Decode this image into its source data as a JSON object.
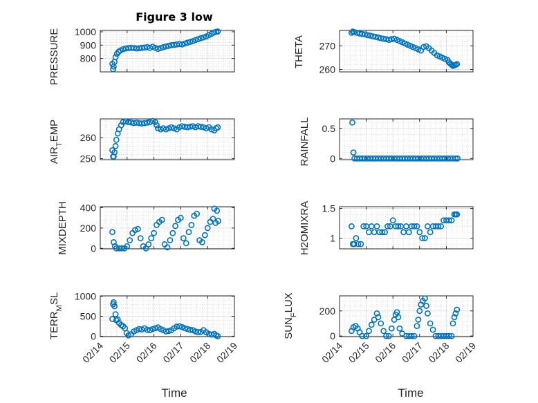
{
  "figure_title": "Figure 3 low",
  "colors": {
    "marker": "#0072BD",
    "axis": "#262626",
    "grid": "#c8c8c8"
  },
  "chart_data": [
    {
      "type": "scatter",
      "ylabel": "PRESSURE",
      "ylim": [
        700,
        1010
      ],
      "yticks": [
        800,
        900,
        1000
      ],
      "xlim": [
        0,
        5
      ],
      "x": [
        0.45,
        0.48,
        0.5,
        0.53,
        0.57,
        0.62,
        0.68,
        0.75,
        0.85,
        0.95,
        1.05,
        1.15,
        1.25,
        1.35,
        1.45,
        1.55,
        1.65,
        1.75,
        1.85,
        1.95,
        2.05,
        2.15,
        2.25,
        2.35,
        2.45,
        2.55,
        2.65,
        2.75,
        2.85,
        2.95,
        3.05,
        3.15,
        3.25,
        3.35,
        3.45,
        3.55,
        3.65,
        3.75,
        3.85,
        3.95,
        4.05,
        4.15,
        4.25,
        4.32,
        4.38
      ],
      "y": [
        760,
        720,
        740,
        775,
        810,
        835,
        850,
        860,
        870,
        875,
        878,
        880,
        878,
        875,
        876,
        880,
        882,
        885,
        880,
        888,
        880,
        872,
        878,
        885,
        890,
        895,
        900,
        902,
        905,
        908,
        905,
        912,
        918,
        925,
        930,
        938,
        945,
        952,
        958,
        965,
        975,
        985,
        995,
        1000,
        1002
      ]
    },
    {
      "type": "scatter",
      "ylabel": "THETA",
      "ylim": [
        259,
        276.5
      ],
      "yticks": [
        260,
        270
      ],
      "xlim": [
        0,
        5
      ],
      "x": [
        0.45,
        0.5,
        0.55,
        0.65,
        0.75,
        0.85,
        0.95,
        1.05,
        1.15,
        1.25,
        1.35,
        1.45,
        1.55,
        1.65,
        1.75,
        1.85,
        1.95,
        2.05,
        2.15,
        2.25,
        2.35,
        2.45,
        2.55,
        2.65,
        2.75,
        2.85,
        2.95,
        3.05,
        3.15,
        3.25,
        3.35,
        3.45,
        3.55,
        3.65,
        3.75,
        3.85,
        3.95,
        4.05,
        4.1,
        4.15,
        4.2,
        4.25,
        4.3,
        4.35,
        4.4
      ],
      "y": [
        275.5,
        276,
        275.8,
        275.5,
        275.2,
        275,
        274.8,
        274.5,
        274.3,
        274,
        273.8,
        273.5,
        273.2,
        273,
        272.8,
        272.5,
        272.8,
        273,
        272.5,
        272,
        271.5,
        271,
        270.5,
        270,
        269.5,
        269,
        268.5,
        268,
        269.5,
        269.8,
        269,
        268,
        267,
        266,
        265.5,
        265,
        264.5,
        264,
        263,
        262.5,
        262,
        261.5,
        261.8,
        262,
        262.3
      ]
    },
    {
      "type": "scatter",
      "ylabel": "AIR_TEMP",
      "ylim": [
        249.5,
        269
      ],
      "yticks": [
        250,
        260
      ],
      "xlim": [
        0,
        5
      ],
      "x": [
        0.45,
        0.48,
        0.5,
        0.53,
        0.57,
        0.6,
        0.65,
        0.7,
        0.78,
        0.85,
        0.95,
        1.05,
        1.15,
        1.25,
        1.35,
        1.45,
        1.55,
        1.65,
        1.75,
        1.85,
        1.95,
        2.05,
        2.1,
        2.15,
        2.25,
        2.35,
        2.45,
        2.55,
        2.65,
        2.75,
        2.85,
        2.95,
        3.05,
        3.15,
        3.25,
        3.35,
        3.45,
        3.55,
        3.65,
        3.75,
        3.85,
        3.95,
        4.05,
        4.15,
        4.25,
        4.32,
        4.38
      ],
      "y": [
        254,
        251,
        251,
        253,
        256,
        259,
        262,
        264,
        266,
        267.5,
        267.8,
        267.5,
        267.3,
        267,
        267.2,
        267,
        266.8,
        267,
        267.2,
        267.5,
        268,
        267.5,
        266,
        264.5,
        264,
        264.5,
        264,
        264.5,
        265,
        264.5,
        264,
        265,
        265.5,
        265.2,
        265,
        265.3,
        265.5,
        265,
        265.5,
        265.2,
        265,
        264.5,
        265,
        264,
        263.5,
        264.5,
        265
      ]
    },
    {
      "type": "scatter",
      "ylabel": "RAINFALL",
      "ylim": [
        -0.02,
        0.66
      ],
      "yticks": [
        0,
        0.5
      ],
      "xlim": [
        0,
        5
      ],
      "x": [
        0.48,
        0.52,
        0.56,
        0.65,
        0.75,
        0.85,
        0.95,
        1.05,
        1.15,
        1.25,
        1.35,
        1.45,
        1.55,
        1.65,
        1.75,
        1.85,
        1.95,
        2.05,
        2.15,
        2.25,
        2.35,
        2.45,
        2.55,
        2.65,
        2.75,
        2.85,
        2.95,
        3.05,
        3.15,
        3.25,
        3.35,
        3.45,
        3.55,
        3.65,
        3.75,
        3.85,
        3.95,
        4.05,
        4.15,
        4.25,
        4.35,
        4.42
      ],
      "y": [
        0.6,
        0.1,
        0,
        0,
        0,
        0,
        0,
        0,
        0,
        0,
        0,
        0,
        0,
        0,
        0,
        0,
        0,
        0,
        0,
        0,
        0,
        0,
        0,
        0,
        0,
        0,
        0,
        0,
        0,
        0,
        0,
        0,
        0,
        0,
        0,
        0,
        0,
        0,
        0,
        0,
        0,
        0
      ]
    },
    {
      "type": "scatter",
      "ylabel": "MIXDEPTH",
      "ylim": [
        -5,
        410
      ],
      "yticks": [
        0,
        200,
        400
      ],
      "xlim": [
        0,
        5
      ],
      "x": [
        0.45,
        0.5,
        0.55,
        0.6,
        0.7,
        0.8,
        0.9,
        1.0,
        1.1,
        1.2,
        1.3,
        1.4,
        1.5,
        1.6,
        1.7,
        1.8,
        1.9,
        2.0,
        2.1,
        2.2,
        2.3,
        2.4,
        2.5,
        2.6,
        2.7,
        2.8,
        2.9,
        3.0,
        3.1,
        3.2,
        3.3,
        3.4,
        3.5,
        3.6,
        3.7,
        3.8,
        3.9,
        4.0,
        4.1,
        4.2,
        4.25,
        4.3,
        4.35,
        4.4
      ],
      "y": [
        160,
        60,
        20,
        0,
        0,
        0,
        0,
        20,
        80,
        150,
        180,
        190,
        100,
        20,
        0,
        40,
        100,
        150,
        230,
        260,
        280,
        40,
        10,
        80,
        150,
        220,
        280,
        300,
        100,
        50,
        160,
        230,
        320,
        340,
        80,
        60,
        130,
        200,
        260,
        290,
        390,
        250,
        370,
        270
      ]
    },
    {
      "type": "scatter",
      "ylabel": "H2OMIXRA",
      "ylim": [
        0.82,
        1.53
      ],
      "yticks": [
        1,
        1.5
      ],
      "xlim": [
        0,
        5
      ],
      "x": [
        0.45,
        0.5,
        0.55,
        0.62,
        0.7,
        0.8,
        0.9,
        1.0,
        1.1,
        1.2,
        1.3,
        1.4,
        1.5,
        1.6,
        1.7,
        1.8,
        1.9,
        2.0,
        2.1,
        2.2,
        2.3,
        2.4,
        2.5,
        2.6,
        2.7,
        2.8,
        2.9,
        3.0,
        3.1,
        3.2,
        3.3,
        3.4,
        3.5,
        3.6,
        3.7,
        3.8,
        3.9,
        4.0,
        4.1,
        4.2,
        4.3,
        4.35,
        4.4
      ],
      "y": [
        1.2,
        0.9,
        0.9,
        1.0,
        0.9,
        0.9,
        1.2,
        1.2,
        1.1,
        1.2,
        1.1,
        1.2,
        1.1,
        1.1,
        1.1,
        1.2,
        1.2,
        1.3,
        1.2,
        1.2,
        1.2,
        1.1,
        1.2,
        1.1,
        1.2,
        1.2,
        1.2,
        1.1,
        1.0,
        1.0,
        1.2,
        1.1,
        1.2,
        1.2,
        1.2,
        1.2,
        1.3,
        1.3,
        1.3,
        1.3,
        1.4,
        1.4,
        1.4
      ]
    },
    {
      "type": "scatter",
      "ylabel": "TERR_MSL",
      "ylim": [
        -10,
        1010
      ],
      "yticks": [
        0,
        500,
        1000
      ],
      "xlim": [
        0,
        5
      ],
      "x": [
        0.45,
        0.48,
        0.5,
        0.53,
        0.57,
        0.6,
        0.65,
        0.7,
        0.78,
        0.85,
        0.92,
        0.98,
        1.05,
        1.15,
        1.25,
        1.35,
        1.45,
        1.55,
        1.65,
        1.75,
        1.85,
        1.95,
        2.05,
        2.15,
        2.25,
        2.35,
        2.45,
        2.55,
        2.65,
        2.75,
        2.85,
        2.95,
        3.05,
        3.15,
        3.25,
        3.35,
        3.45,
        3.55,
        3.65,
        3.75,
        3.85,
        3.95,
        4.05,
        4.15,
        4.25,
        4.32,
        4.38
      ],
      "y": [
        430,
        800,
        850,
        750,
        550,
        400,
        420,
        330,
        280,
        250,
        200,
        80,
        20,
        50,
        120,
        150,
        180,
        170,
        200,
        160,
        150,
        180,
        200,
        220,
        180,
        150,
        120,
        130,
        150,
        200,
        240,
        250,
        230,
        200,
        180,
        160,
        150,
        120,
        100,
        110,
        150,
        100,
        60,
        40,
        60,
        20,
        0
      ]
    },
    {
      "type": "scatter",
      "ylabel": "SUN_FLUX",
      "ylim": [
        -5,
        320
      ],
      "yticks": [
        0,
        200
      ],
      "xlim": [
        0,
        5
      ],
      "x": [
        0.45,
        0.52,
        0.6,
        0.68,
        0.75,
        0.85,
        1.0,
        1.1,
        1.2,
        1.3,
        1.4,
        1.45,
        1.55,
        1.65,
        1.75,
        1.85,
        1.95,
        2.05,
        2.1,
        2.15,
        2.2,
        2.25,
        2.35,
        2.5,
        2.6,
        2.7,
        2.8,
        2.9,
        2.95,
        3.0,
        3.05,
        3.12,
        3.2,
        3.25,
        3.3,
        3.4,
        3.5,
        3.6,
        3.7,
        3.8,
        3.9,
        4.0,
        4.1,
        4.2,
        4.25,
        4.3,
        4.35,
        4.4
      ],
      "y": [
        40,
        70,
        80,
        60,
        30,
        0,
        0,
        40,
        90,
        130,
        180,
        150,
        100,
        40,
        0,
        0,
        60,
        130,
        170,
        190,
        150,
        60,
        20,
        0,
        0,
        0,
        0,
        80,
        130,
        200,
        250,
        280,
        300,
        240,
        180,
        100,
        50,
        0,
        0,
        0,
        0,
        0,
        0,
        0,
        100,
        150,
        180,
        210
      ]
    }
  ],
  "xaxis": {
    "tick_labels": [
      "02/14",
      "02/15",
      "02/16",
      "02/17",
      "02/18",
      "02/19"
    ],
    "label": "Time"
  },
  "ylabels": {
    "pressure": "PRESSURE",
    "theta": "THETA",
    "air_temp": {
      "main": "AIR",
      "sub": "T",
      "tail": "EMP"
    },
    "rainfall": "RAINFALL",
    "mixdepth": "MIXDEPTH",
    "h2omixra": "H2OMIXRA",
    "terr_msl": {
      "main": "TERR",
      "sub": "M",
      "tail": "SL"
    },
    "sun_flux": {
      "main": "SUN",
      "sub": "F",
      "tail": "LUX"
    }
  }
}
